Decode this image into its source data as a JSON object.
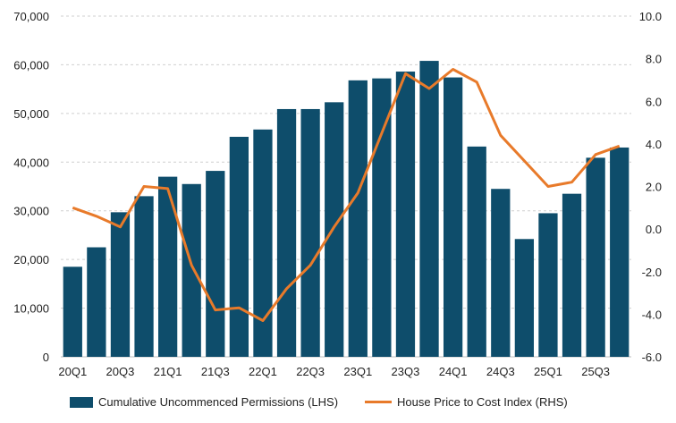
{
  "chart_data": {
    "type": "bar+line",
    "title": "",
    "categories": [
      "20Q1",
      "20Q2",
      "20Q3",
      "20Q4",
      "21Q1",
      "21Q2",
      "21Q3",
      "21Q4",
      "22Q1",
      "22Q2",
      "22Q3",
      "22Q4",
      "23Q1",
      "23Q2",
      "23Q3",
      "23Q4",
      "24Q1",
      "24Q2",
      "24Q3",
      "24Q4",
      "25Q1",
      "25Q2",
      "25Q3",
      "25Q4"
    ],
    "x_tick_labels": [
      "20Q1",
      "",
      "20Q3",
      "",
      "21Q1",
      "",
      "21Q3",
      "",
      "22Q1",
      "",
      "22Q3",
      "",
      "23Q1",
      "",
      "23Q3",
      "",
      "24Q1",
      "",
      "24Q3",
      "",
      "25Q1",
      "",
      "25Q3",
      ""
    ],
    "series": [
      {
        "name": "Cumulative Uncommenced Permissions (LHS)",
        "type": "bar",
        "axis": "left",
        "color": "#0e4d6b",
        "values": [
          18500,
          22500,
          29700,
          33000,
          37000,
          35500,
          38200,
          45200,
          46700,
          50900,
          50900,
          52300,
          56800,
          57200,
          58600,
          60800,
          57400,
          43200,
          34500,
          24200,
          29500,
          33500,
          40900,
          43000
        ]
      },
      {
        "name": "House Price to Cost Index (RHS)",
        "type": "line",
        "axis": "right",
        "color": "#e87a2a",
        "values": [
          1.0,
          0.6,
          0.1,
          2.0,
          1.9,
          -1.7,
          -3.8,
          -3.7,
          -4.3,
          -2.8,
          -1.7,
          0.1,
          1.7,
          4.5,
          7.3,
          6.6,
          7.5,
          6.9,
          4.4,
          3.2,
          2.0,
          2.2,
          3.5,
          3.9
        ]
      }
    ],
    "left_axis": {
      "min": 0,
      "max": 70000,
      "step": 10000,
      "tick_labels": [
        "0",
        "10,000",
        "20,000",
        "30,000",
        "40,000",
        "50,000",
        "60,000",
        "70,000"
      ]
    },
    "right_axis": {
      "min": -6.0,
      "max": 10.0,
      "step": 2.0,
      "tick_labels": [
        "-6.0",
        "-4.0",
        "-2.0",
        "0.0",
        "2.0",
        "4.0",
        "6.0",
        "8.0",
        "10.0"
      ]
    },
    "grid": true,
    "legend_position": "bottom"
  }
}
